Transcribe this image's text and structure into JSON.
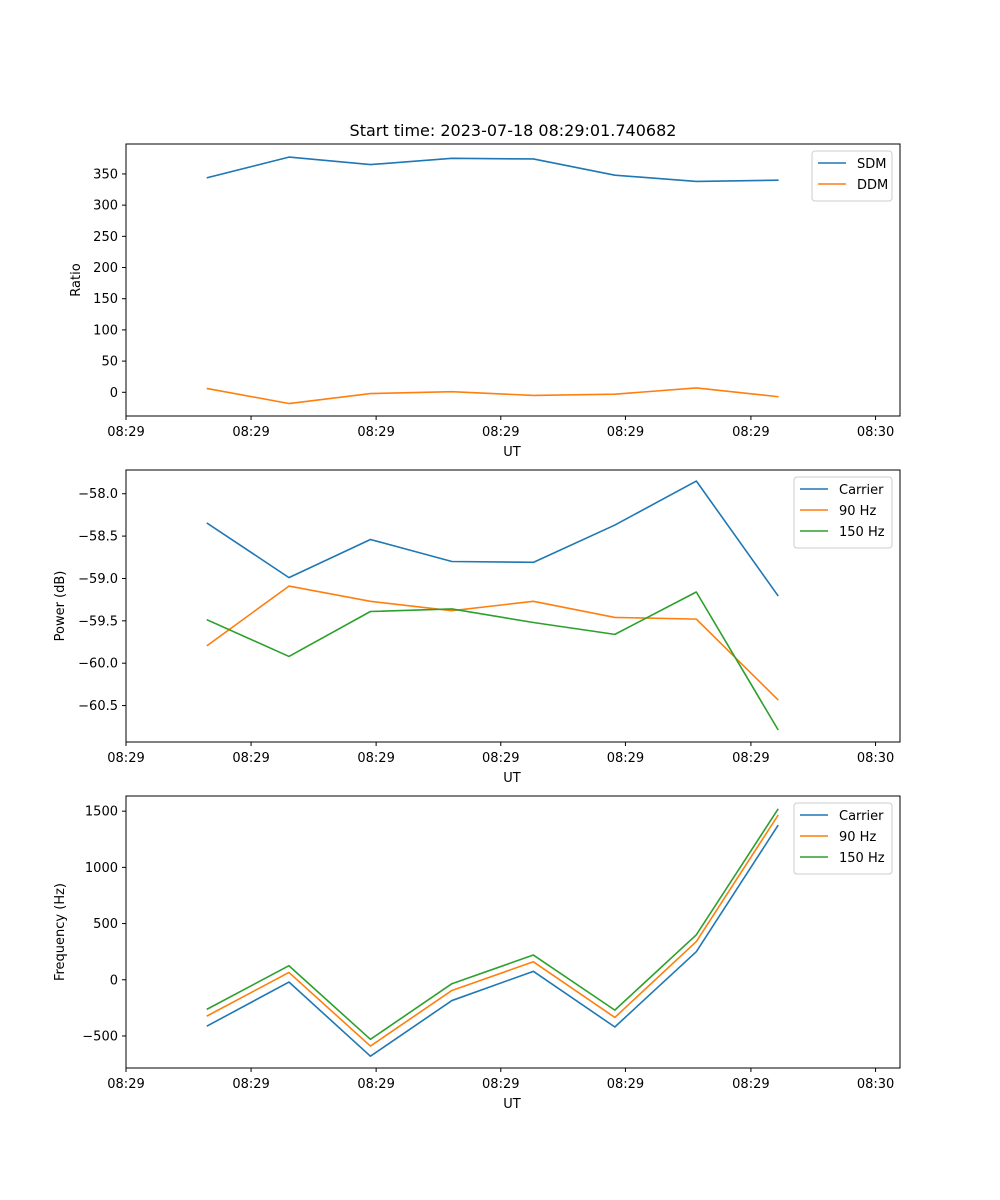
{
  "figure": {
    "title": "Start time: 2023-07-18 08:29:01.740682"
  },
  "colors": {
    "blue": "#1f77b4",
    "orange": "#ff7f0e",
    "green": "#2ca02c",
    "axes": "#000000",
    "background": "#ffffff"
  },
  "chart_data": [
    {
      "type": "line",
      "title": "Start time: 2023-07-18 08:29:01.740682",
      "xlabel": "UT",
      "ylabel": "Ratio",
      "x": [
        1,
        2,
        3,
        4,
        5,
        6,
        7,
        8
      ],
      "xlim": [
        0,
        9.5
      ],
      "x_ticks": [
        {
          "v": 0,
          "label": "08:29"
        },
        {
          "v": 1.535,
          "label": "08:29"
        },
        {
          "v": 3.07,
          "label": "08:29"
        },
        {
          "v": 4.6,
          "label": "08:29"
        },
        {
          "v": 6.13,
          "label": "08:29"
        },
        {
          "v": 7.67,
          "label": "08:29"
        },
        {
          "v": 9.2,
          "label": "08:30"
        }
      ],
      "ylim": [
        -38,
        398
      ],
      "y_ticks": [
        0,
        50,
        100,
        150,
        200,
        250,
        300,
        350
      ],
      "legend_position": "upper-right",
      "series": [
        {
          "name": "SDM",
          "color": "#1f77b4",
          "values": [
            344,
            377,
            365,
            375,
            374,
            348,
            338,
            340
          ]
        },
        {
          "name": "DDM",
          "color": "#ff7f0e",
          "values": [
            6,
            -18,
            -2,
            1,
            -5,
            -3,
            7,
            -7
          ]
        }
      ]
    },
    {
      "type": "line",
      "title": "",
      "xlabel": "UT",
      "ylabel": "Power (dB)",
      "x": [
        1,
        2,
        3,
        4,
        5,
        6,
        7,
        8
      ],
      "xlim": [
        0,
        9.5
      ],
      "x_ticks": [
        {
          "v": 0,
          "label": "08:29"
        },
        {
          "v": 1.535,
          "label": "08:29"
        },
        {
          "v": 3.07,
          "label": "08:29"
        },
        {
          "v": 4.6,
          "label": "08:29"
        },
        {
          "v": 6.13,
          "label": "08:29"
        },
        {
          "v": 7.67,
          "label": "08:29"
        },
        {
          "v": 9.2,
          "label": "08:30"
        }
      ],
      "ylim": [
        -60.93,
        -57.72
      ],
      "y_ticks": [
        -60.5,
        -60.0,
        -59.5,
        -59.0,
        -58.5,
        -58.0
      ],
      "y_tick_labels": [
        "−60.5",
        "−60.0",
        "−59.5",
        "−59.0",
        "−58.5",
        "−58.0"
      ],
      "legend_position": "upper-right",
      "series": [
        {
          "name": "Carrier",
          "color": "#1f77b4",
          "values": [
            -58.35,
            -58.99,
            -58.54,
            -58.8,
            -58.81,
            -58.37,
            -57.85,
            -59.2
          ]
        },
        {
          "name": "90 Hz",
          "color": "#ff7f0e",
          "values": [
            -59.79,
            -59.09,
            -59.27,
            -59.38,
            -59.27,
            -59.46,
            -59.48,
            -60.43
          ]
        },
        {
          "name": "150 Hz",
          "color": "#2ca02c",
          "values": [
            -59.49,
            -59.92,
            -59.39,
            -59.36,
            -59.52,
            -59.66,
            -59.16,
            -60.78
          ]
        }
      ]
    },
    {
      "type": "line",
      "title": "",
      "xlabel": "UT",
      "ylabel": "Frequency (Hz)",
      "x": [
        1,
        2,
        3,
        4,
        5,
        6,
        7,
        8
      ],
      "xlim": [
        0,
        9.5
      ],
      "x_ticks": [
        {
          "v": 0,
          "label": "08:29"
        },
        {
          "v": 1.535,
          "label": "08:29"
        },
        {
          "v": 3.07,
          "label": "08:29"
        },
        {
          "v": 4.6,
          "label": "08:29"
        },
        {
          "v": 6.13,
          "label": "08:29"
        },
        {
          "v": 7.67,
          "label": "08:29"
        },
        {
          "v": 9.2,
          "label": "08:30"
        }
      ],
      "ylim": [
        -785,
        1635
      ],
      "y_ticks": [
        -500,
        0,
        500,
        1000,
        1500
      ],
      "y_tick_labels": [
        "−500",
        "0",
        "500",
        "1000",
        "1500"
      ],
      "legend_position": "upper-right",
      "series": [
        {
          "name": "Carrier",
          "color": "#1f77b4",
          "values": [
            -410,
            -20,
            -680,
            -185,
            75,
            -420,
            250,
            1370
          ]
        },
        {
          "name": "90 Hz",
          "color": "#ff7f0e",
          "values": [
            -320,
            65,
            -590,
            -95,
            160,
            -335,
            340,
            1460
          ]
        },
        {
          "name": "150 Hz",
          "color": "#2ca02c",
          "values": [
            -260,
            125,
            -530,
            -35,
            220,
            -270,
            400,
            1515
          ]
        }
      ]
    }
  ]
}
